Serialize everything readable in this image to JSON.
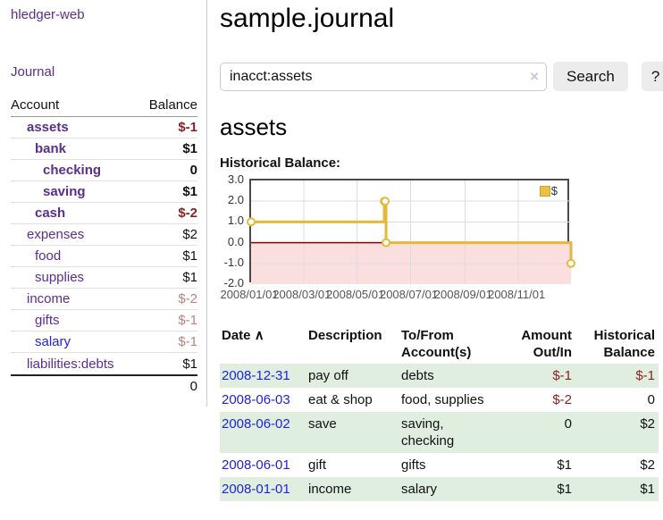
{
  "sidebar": {
    "brand": "hledger-web",
    "nav": {
      "journal": "Journal"
    },
    "table": {
      "account_header": "Account",
      "balance_header": "Balance",
      "accounts": [
        {
          "name": "assets",
          "balance": "$-1",
          "indent": 1,
          "bold": true,
          "neg": "strong",
          "link": "purple"
        },
        {
          "name": "bank",
          "balance": "$1",
          "indent": 2,
          "bold": true,
          "neg": null,
          "link": "purple"
        },
        {
          "name": "checking",
          "balance": "0",
          "indent": 3,
          "bold": true,
          "neg": null,
          "link": "purple"
        },
        {
          "name": "saving",
          "balance": "$1",
          "indent": 3,
          "bold": true,
          "neg": null,
          "link": "purple"
        },
        {
          "name": "cash",
          "balance": "$-2",
          "indent": 2,
          "bold": true,
          "neg": "strong",
          "link": "purple"
        },
        {
          "name": "expenses",
          "balance": "$2",
          "indent": 1,
          "bold": false,
          "neg": null,
          "link": "purple"
        },
        {
          "name": "food",
          "balance": "$1",
          "indent": 2,
          "bold": false,
          "neg": null,
          "link": "purple"
        },
        {
          "name": "supplies",
          "balance": "$1",
          "indent": 2,
          "bold": false,
          "neg": null,
          "link": "purple"
        },
        {
          "name": "income",
          "balance": "$-2",
          "indent": 1,
          "bold": false,
          "neg": "soft",
          "link": "purple"
        },
        {
          "name": "gifts",
          "balance": "$-1",
          "indent": 2,
          "bold": false,
          "neg": "soft",
          "link": "purple"
        },
        {
          "name": "salary",
          "balance": "$-1",
          "indent": 2,
          "bold": false,
          "neg": "soft",
          "link": "blue"
        },
        {
          "name": "liabilities:debts",
          "balance": "$1",
          "indent": 1,
          "bold": false,
          "neg": null,
          "link": "purple"
        }
      ],
      "total": "0"
    }
  },
  "main": {
    "title": "sample.journal",
    "search": {
      "value": "inacct:assets",
      "clear_icon": "×",
      "search_button": "Search",
      "help_button": "?"
    },
    "account_heading": "assets",
    "chart_title": "Historical Balance:"
  },
  "chart_data": {
    "type": "line",
    "step": true,
    "title": "Historical Balance",
    "legend": [
      {
        "label": "$",
        "color": "#e9c048"
      }
    ],
    "legend_position": "top-right",
    "grid": true,
    "x_range": [
      "2008-01-01",
      "2008-12-31"
    ],
    "ylim": [
      -2,
      3
    ],
    "yticks": [
      {
        "label": "3.0",
        "value": 3
      },
      {
        "label": "2.0",
        "value": 2
      },
      {
        "label": "1.0",
        "value": 1
      },
      {
        "label": "0.0",
        "value": 0
      },
      {
        "label": "-1.0",
        "value": -1
      },
      {
        "label": "-2.0",
        "value": -2
      }
    ],
    "xticks": [
      {
        "label": "2008/01/01",
        "date": "2008-01-01"
      },
      {
        "label": "2008/03/01",
        "date": "2008-03-01"
      },
      {
        "label": "2008/05/01",
        "date": "2008-05-01"
      },
      {
        "label": "2008/07/01",
        "date": "2008-07-01"
      },
      {
        "label": "2008/09/01",
        "date": "2008-09-01"
      },
      {
        "label": "2008/11/01",
        "date": "2008-11-01"
      }
    ],
    "series": [
      {
        "name": "$",
        "points": [
          [
            "2008-01-01",
            1
          ],
          [
            "2008-06-01",
            2
          ],
          [
            "2008-06-02",
            2
          ],
          [
            "2008-06-03",
            0
          ],
          [
            "2008-12-31",
            -1
          ]
        ]
      }
    ],
    "colors": {
      "line": "#e3b83d",
      "marker_fill": "#ffffff",
      "negative_fill": "#fbdfdf",
      "zero_line": "#8b0000",
      "grid": "#dcdcdc",
      "frame": "#4a4a4a"
    }
  },
  "register": {
    "headers": {
      "date": "Date",
      "sort_icon": "∧",
      "description": "Description",
      "accounts": "To/From\nAccount(s)",
      "amount": "Amount\nOut/In",
      "balance": "Historical\nBalance"
    },
    "rows": [
      {
        "date": "2008-12-31",
        "description": "pay off",
        "accounts": "debts",
        "amount": "$-1",
        "amount_neg": true,
        "balance": "$-1",
        "balance_neg": true,
        "highlight": true
      },
      {
        "date": "2008-06-03",
        "description": "eat & shop",
        "accounts": "food, supplies",
        "amount": "$-2",
        "amount_neg": true,
        "balance": "0",
        "balance_neg": false,
        "highlight": false
      },
      {
        "date": "2008-06-02",
        "description": "save",
        "accounts": "saving,\nchecking",
        "amount": "0",
        "amount_neg": false,
        "balance": "$2",
        "balance_neg": false,
        "highlight": true
      },
      {
        "date": "2008-06-01",
        "description": "gift",
        "accounts": "gifts",
        "amount": "$1",
        "amount_neg": false,
        "balance": "$2",
        "balance_neg": false,
        "highlight": false
      },
      {
        "date": "2008-01-01",
        "description": "income",
        "accounts": "salary",
        "amount": "$1",
        "amount_neg": false,
        "balance": "$1",
        "balance_neg": false,
        "highlight": true
      }
    ]
  },
  "colors": {
    "link_purple": "#5c2d91",
    "link_blue": "#2222dd",
    "neg_strong": "#8e1f1f",
    "neg_soft": "#c27f7f",
    "row_highlight": "#dfeedf"
  }
}
